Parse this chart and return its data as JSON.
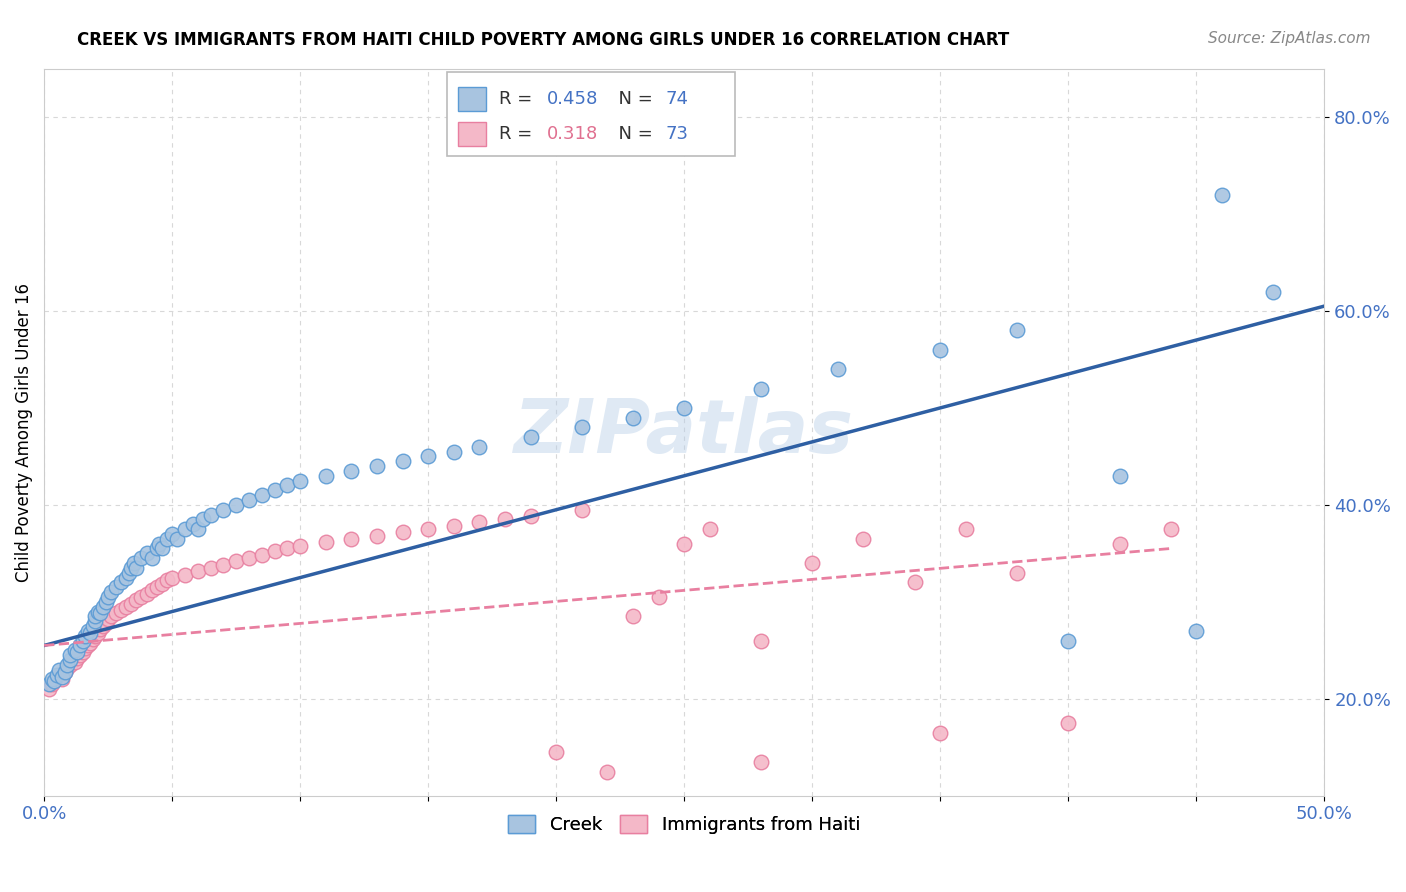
{
  "title": "CREEK VS IMMIGRANTS FROM HAITI CHILD POVERTY AMONG GIRLS UNDER 16 CORRELATION CHART",
  "source": "Source: ZipAtlas.com",
  "ylabel": "Child Poverty Among Girls Under 16",
  "xlabel": "",
  "xlim": [
    0.0,
    0.5
  ],
  "ylim": [
    0.1,
    0.85
  ],
  "xticks": [
    0.0,
    0.05,
    0.1,
    0.15,
    0.2,
    0.25,
    0.3,
    0.35,
    0.4,
    0.45,
    0.5
  ],
  "yticks": [
    0.2,
    0.4,
    0.6,
    0.8
  ],
  "creek_color": "#a8c4e0",
  "creek_edge_color": "#5b9bd5",
  "haiti_color": "#f4b8c8",
  "haiti_edge_color": "#e87fa0",
  "creek_line_color": "#2e5fa3",
  "haiti_line_color": "#e87fa0",
  "r_creek": 0.458,
  "n_creek": 74,
  "r_haiti": 0.318,
  "n_haiti": 73,
  "watermark": "ZIPatlas",
  "background_color": "#ffffff",
  "grid_color": "#d8d8d8",
  "title_color": "#000000",
  "source_color": "#888888",
  "tick_color": "#4472c4",
  "creek_scatter_x": [
    0.002,
    0.003,
    0.004,
    0.005,
    0.006,
    0.007,
    0.008,
    0.009,
    0.01,
    0.01,
    0.012,
    0.013,
    0.014,
    0.015,
    0.016,
    0.017,
    0.018,
    0.019,
    0.02,
    0.02,
    0.021,
    0.022,
    0.023,
    0.024,
    0.025,
    0.026,
    0.028,
    0.03,
    0.032,
    0.033,
    0.034,
    0.035,
    0.036,
    0.038,
    0.04,
    0.042,
    0.044,
    0.045,
    0.046,
    0.048,
    0.05,
    0.052,
    0.055,
    0.058,
    0.06,
    0.062,
    0.065,
    0.07,
    0.075,
    0.08,
    0.085,
    0.09,
    0.095,
    0.1,
    0.11,
    0.12,
    0.13,
    0.14,
    0.15,
    0.16,
    0.17,
    0.19,
    0.21,
    0.23,
    0.25,
    0.28,
    0.31,
    0.35,
    0.38,
    0.4,
    0.42,
    0.45,
    0.46,
    0.48
  ],
  "creek_scatter_y": [
    0.215,
    0.22,
    0.218,
    0.225,
    0.23,
    0.222,
    0.228,
    0.235,
    0.24,
    0.245,
    0.25,
    0.248,
    0.255,
    0.26,
    0.265,
    0.27,
    0.268,
    0.275,
    0.28,
    0.285,
    0.29,
    0.288,
    0.295,
    0.3,
    0.305,
    0.31,
    0.315,
    0.32,
    0.325,
    0.33,
    0.335,
    0.34,
    0.335,
    0.345,
    0.35,
    0.345,
    0.355,
    0.36,
    0.355,
    0.365,
    0.37,
    0.365,
    0.375,
    0.38,
    0.375,
    0.385,
    0.39,
    0.395,
    0.4,
    0.405,
    0.41,
    0.415,
    0.42,
    0.425,
    0.43,
    0.435,
    0.44,
    0.445,
    0.45,
    0.455,
    0.46,
    0.47,
    0.48,
    0.49,
    0.5,
    0.52,
    0.54,
    0.56,
    0.58,
    0.26,
    0.43,
    0.27,
    0.72,
    0.62
  ],
  "haiti_scatter_x": [
    0.002,
    0.003,
    0.004,
    0.005,
    0.006,
    0.007,
    0.008,
    0.009,
    0.01,
    0.012,
    0.013,
    0.014,
    0.015,
    0.016,
    0.017,
    0.018,
    0.019,
    0.02,
    0.021,
    0.022,
    0.023,
    0.024,
    0.025,
    0.026,
    0.028,
    0.03,
    0.032,
    0.034,
    0.036,
    0.038,
    0.04,
    0.042,
    0.044,
    0.046,
    0.048,
    0.05,
    0.055,
    0.06,
    0.065,
    0.07,
    0.075,
    0.08,
    0.085,
    0.09,
    0.095,
    0.1,
    0.11,
    0.12,
    0.13,
    0.14,
    0.15,
    0.16,
    0.17,
    0.18,
    0.19,
    0.2,
    0.21,
    0.22,
    0.23,
    0.24,
    0.25,
    0.26,
    0.28,
    0.3,
    0.32,
    0.34,
    0.36,
    0.38,
    0.4,
    0.42,
    0.44,
    0.28,
    0.35
  ],
  "haiti_scatter_y": [
    0.21,
    0.215,
    0.218,
    0.222,
    0.225,
    0.22,
    0.228,
    0.232,
    0.235,
    0.238,
    0.242,
    0.245,
    0.248,
    0.252,
    0.255,
    0.258,
    0.262,
    0.265,
    0.268,
    0.272,
    0.275,
    0.278,
    0.282,
    0.285,
    0.288,
    0.292,
    0.295,
    0.298,
    0.302,
    0.305,
    0.308,
    0.312,
    0.315,
    0.318,
    0.322,
    0.325,
    0.328,
    0.332,
    0.335,
    0.338,
    0.342,
    0.345,
    0.348,
    0.352,
    0.355,
    0.358,
    0.362,
    0.365,
    0.368,
    0.372,
    0.375,
    0.378,
    0.382,
    0.385,
    0.388,
    0.145,
    0.395,
    0.125,
    0.285,
    0.305,
    0.36,
    0.375,
    0.26,
    0.34,
    0.365,
    0.32,
    0.375,
    0.33,
    0.175,
    0.36,
    0.375,
    0.135,
    0.165
  ],
  "creek_line_x0": 0.0,
  "creek_line_x1": 0.5,
  "creek_line_y0": 0.255,
  "creek_line_y1": 0.605,
  "haiti_line_x0": 0.0,
  "haiti_line_x1": 0.44,
  "haiti_line_y0": 0.255,
  "haiti_line_y1": 0.355
}
